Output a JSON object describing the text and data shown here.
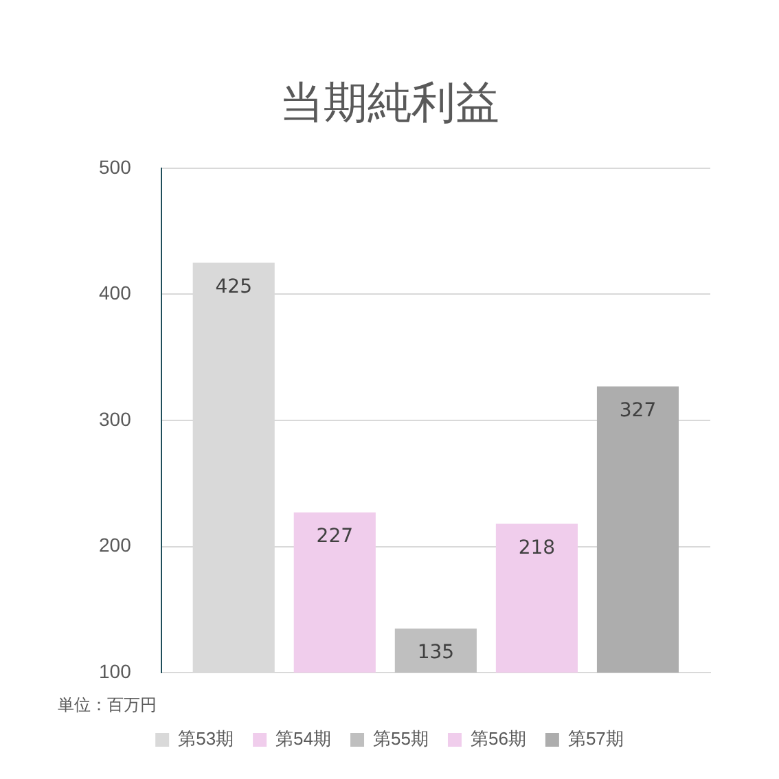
{
  "chart_data": {
    "type": "bar",
    "title": "当期純利益",
    "categories": [
      null
    ],
    "series": [
      {
        "name": "第53期",
        "color": "#d9d9d9",
        "values": [
          425
        ]
      },
      {
        "name": "第54期",
        "color": "#f0cdec",
        "values": [
          227
        ]
      },
      {
        "name": "第55期",
        "color": "#bfbfbf",
        "values": [
          135
        ]
      },
      {
        "name": "第56期",
        "color": "#f0cdec",
        "values": [
          218
        ]
      },
      {
        "name": "第57期",
        "color": "#adadad",
        "values": [
          327
        ]
      }
    ],
    "ylim": [
      100,
      500
    ],
    "yticks": [
      100,
      200,
      300,
      400,
      500
    ],
    "grid": "y",
    "legend": "bottom",
    "data_labels": true,
    "annotations": [
      "単位：百万円"
    ]
  }
}
